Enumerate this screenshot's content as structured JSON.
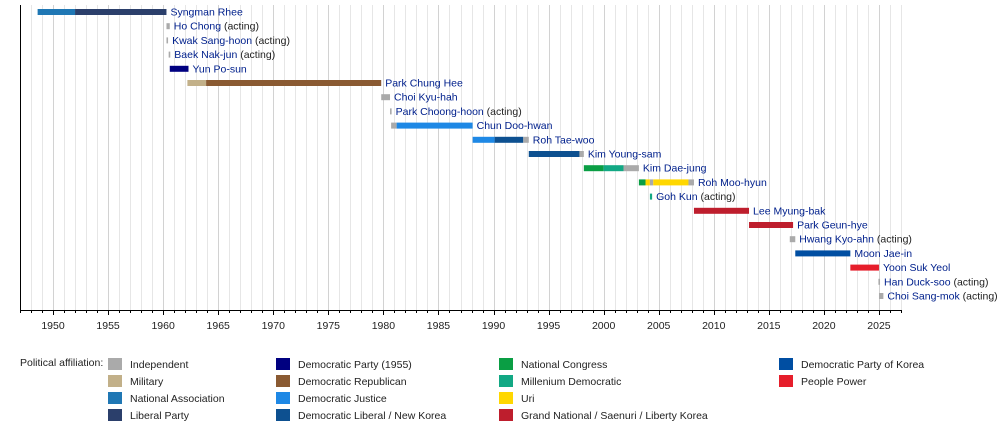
{
  "chart_data": {
    "type": "bar",
    "xlim": [
      1947,
      2027
    ],
    "ticks": [
      1950,
      1955,
      1960,
      1965,
      1970,
      1975,
      1980,
      1985,
      1990,
      1995,
      2000,
      2005,
      2010,
      2015,
      2020,
      2025
    ],
    "grid": true,
    "legend_position": "bottom",
    "legend_title": "Political affiliation:",
    "parties": [
      {
        "key": "independent",
        "name": "Independent",
        "color": "#aaaaaa"
      },
      {
        "key": "military",
        "name": "Military",
        "color": "#c2b089"
      },
      {
        "key": "national_association",
        "name": "National Association",
        "color": "#1f77b4"
      },
      {
        "key": "liberal",
        "name": "Liberal Party",
        "color": "#2b3f6b"
      },
      {
        "key": "democratic_1955",
        "name": "Democratic Party (1955)",
        "color": "#000080"
      },
      {
        "key": "democratic_republican",
        "name": "Democratic Republican",
        "color": "#8a5a32"
      },
      {
        "key": "democratic_justice",
        "name": "Democratic Justice",
        "color": "#1e88e5"
      },
      {
        "key": "democratic_liberal",
        "name": "Democratic Liberal / New Korea",
        "color": "#0d5090"
      },
      {
        "key": "national_congress",
        "name": "National Congress",
        "color": "#0a9e44"
      },
      {
        "key": "millenium_democratic",
        "name": "Millenium Democratic",
        "color": "#12a884"
      },
      {
        "key": "uri",
        "name": "Uri",
        "color": "#ffd700"
      },
      {
        "key": "grand_national",
        "name": "Grand National / Saenuri / Liberty Korea",
        "color": "#be1e2d"
      },
      {
        "key": "democratic_korea",
        "name": "Democratic Party of Korea",
        "color": "#004ea2"
      },
      {
        "key": "people_power",
        "name": "People Power",
        "color": "#e61e2b"
      }
    ],
    "rows": [
      {
        "name": "Syngman Rhee",
        "note": "",
        "segments": [
          {
            "party": "national_association",
            "start": 1948.6,
            "end": 1952.0
          },
          {
            "party": "liberal",
            "start": 1952.0,
            "end": 1960.3
          }
        ]
      },
      {
        "name": "Ho Chong",
        "note": "(acting)",
        "segments": [
          {
            "party": "independent",
            "start": 1960.3,
            "end": 1960.6
          }
        ]
      },
      {
        "name": "Kwak Sang-hoon",
        "note": "(acting)",
        "segments": [
          {
            "party": "independent",
            "start": 1960.3,
            "end": 1960.4
          }
        ]
      },
      {
        "name": "Baek Nak-jun",
        "note": "(acting)",
        "segments": [
          {
            "party": "independent",
            "start": 1960.5,
            "end": 1960.6
          }
        ]
      },
      {
        "name": "Yun Po-sun",
        "note": "",
        "segments": [
          {
            "party": "democratic_1955",
            "start": 1960.6,
            "end": 1962.3
          }
        ]
      },
      {
        "name": "Park Chung Hee",
        "note": "",
        "segments": [
          {
            "party": "military",
            "start": 1962.2,
            "end": 1963.9
          },
          {
            "party": "democratic_republican",
            "start": 1963.9,
            "end": 1979.8
          }
        ]
      },
      {
        "name": "Choi Kyu-hah",
        "note": "",
        "segments": [
          {
            "party": "independent",
            "start": 1979.8,
            "end": 1980.6
          }
        ]
      },
      {
        "name": "Park Choong-hoon",
        "note": "(acting)",
        "segments": [
          {
            "party": "independent",
            "start": 1980.6,
            "end": 1980.7
          }
        ]
      },
      {
        "name": "Chun Doo-hwan",
        "note": "",
        "segments": [
          {
            "party": "independent",
            "start": 1980.7,
            "end": 1981.2
          },
          {
            "party": "democratic_justice",
            "start": 1981.2,
            "end": 1988.1
          }
        ]
      },
      {
        "name": "Roh Tae-woo",
        "note": "",
        "segments": [
          {
            "party": "democratic_justice",
            "start": 1988.1,
            "end": 1990.1
          },
          {
            "party": "democratic_liberal",
            "start": 1990.1,
            "end": 1992.7
          },
          {
            "party": "independent",
            "start": 1992.7,
            "end": 1993.2
          }
        ]
      },
      {
        "name": "Kim Young-sam",
        "note": "",
        "segments": [
          {
            "party": "democratic_liberal",
            "start": 1993.2,
            "end": 1997.8
          },
          {
            "party": "independent",
            "start": 1997.8,
            "end": 1998.2
          }
        ]
      },
      {
        "name": "Kim Dae-jung",
        "note": "",
        "segments": [
          {
            "party": "national_congress",
            "start": 1998.2,
            "end": 2000.0
          },
          {
            "party": "millenium_democratic",
            "start": 2000.0,
            "end": 2001.8
          },
          {
            "party": "independent",
            "start": 2001.8,
            "end": 2003.2
          }
        ]
      },
      {
        "name": "Roh Moo-hyun",
        "note": "",
        "segments": [
          {
            "party": "national_congress",
            "start": 2003.2,
            "end": 2003.8
          },
          {
            "party": "uri",
            "start": 2003.8,
            "end": 2004.2
          },
          {
            "party": "independent",
            "start": 2004.2,
            "end": 2004.5
          },
          {
            "party": "uri",
            "start": 2004.5,
            "end": 2007.7
          },
          {
            "party": "independent",
            "start": 2007.7,
            "end": 2008.2
          }
        ]
      },
      {
        "name": "Goh Kun",
        "note": "(acting)",
        "segments": [
          {
            "party": "millenium_democratic",
            "start": 2004.2,
            "end": 2004.4
          }
        ]
      },
      {
        "name": "Lee Myung-bak",
        "note": "",
        "segments": [
          {
            "party": "grand_national",
            "start": 2008.2,
            "end": 2013.2
          }
        ]
      },
      {
        "name": "Park Geun-hye",
        "note": "",
        "segments": [
          {
            "party": "grand_national",
            "start": 2013.2,
            "end": 2017.2
          }
        ]
      },
      {
        "name": "Hwang Kyo-ahn",
        "note": "(acting)",
        "segments": [
          {
            "party": "independent",
            "start": 2016.9,
            "end": 2017.4
          }
        ]
      },
      {
        "name": "Moon Jae-in",
        "note": "",
        "segments": [
          {
            "party": "democratic_korea",
            "start": 2017.4,
            "end": 2022.4
          }
        ]
      },
      {
        "name": "Yoon Suk Yeol",
        "note": "",
        "segments": [
          {
            "party": "people_power",
            "start": 2022.4,
            "end": 2025.0
          }
        ]
      },
      {
        "name": "Han Duck-soo",
        "note": "(acting)",
        "segments": [
          {
            "party": "independent",
            "start": 2024.95,
            "end": 2025.05
          }
        ]
      },
      {
        "name": "Choi Sang-mok",
        "note": "(acting)",
        "segments": [
          {
            "party": "independent",
            "start": 2025.0,
            "end": 2025.4
          }
        ]
      }
    ]
  }
}
